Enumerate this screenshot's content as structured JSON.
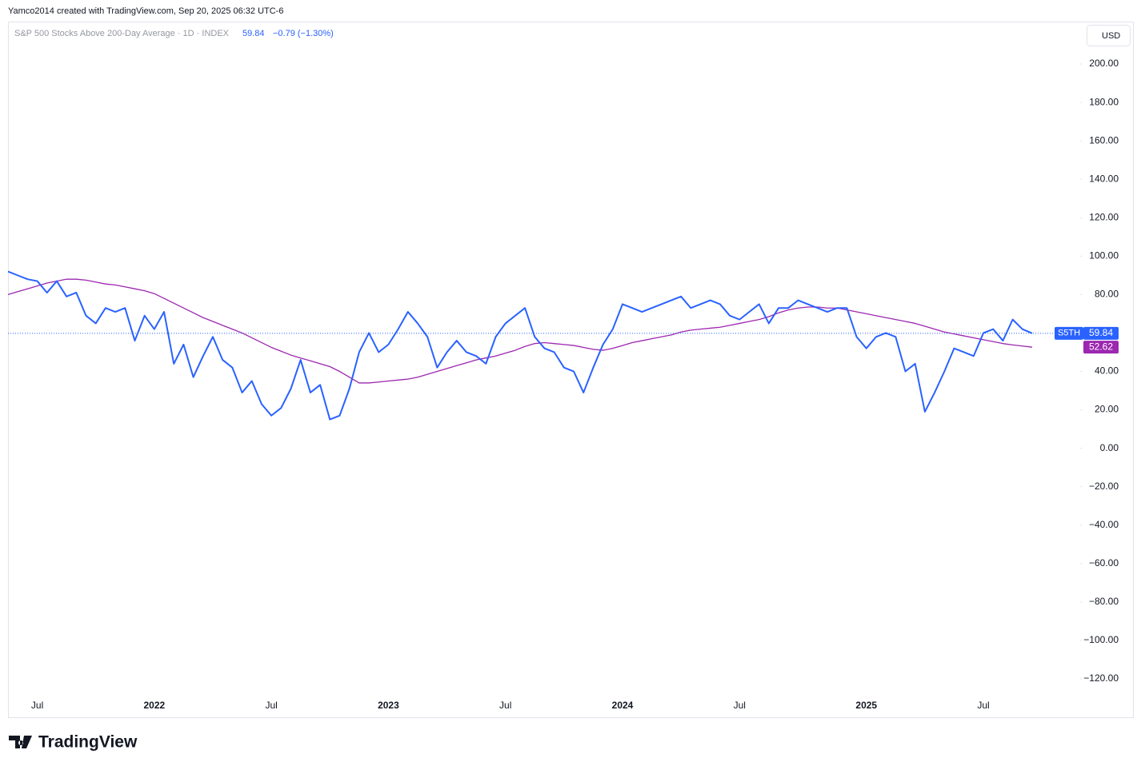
{
  "chart_data": {
    "type": "line",
    "attribution": "Yamco2014 created with TradingView.com, Sep 20, 2025 06:32 UTC-6",
    "title": "S&P 500 Stocks Above 200-Day Average · 1D · INDEX",
    "last_value": "59.84",
    "change": "−0.79 (−1.30%)",
    "currency": "USD",
    "brand": "TradingView",
    "categories": [
      null,
      null,
      null,
      "Jul",
      null,
      null,
      null,
      null,
      null,
      null,
      null,
      null,
      null,
      null,
      null,
      "2022",
      null,
      null,
      null,
      null,
      null,
      null,
      null,
      null,
      null,
      null,
      null,
      "Jul",
      null,
      null,
      null,
      null,
      null,
      null,
      null,
      null,
      null,
      null,
      null,
      "2023",
      null,
      null,
      null,
      null,
      null,
      null,
      null,
      null,
      null,
      null,
      null,
      "Jul",
      null,
      null,
      null,
      null,
      null,
      null,
      null,
      null,
      null,
      null,
      null,
      "2024",
      null,
      null,
      null,
      null,
      null,
      null,
      null,
      null,
      null,
      null,
      null,
      "Jul",
      null,
      null,
      null,
      null,
      null,
      null,
      null,
      null,
      null,
      null,
      null,
      null,
      "2025",
      null,
      null,
      null,
      null,
      null,
      null,
      null,
      null,
      null,
      null,
      null,
      "Jul",
      null,
      null,
      null,
      null,
      null
    ],
    "series": [
      {
        "name": "S5TH",
        "color": "#2962ff",
        "values": [
          92,
          90,
          88,
          87,
          81,
          87,
          79,
          81,
          69,
          65,
          73,
          71,
          73,
          56,
          69,
          62,
          71,
          44,
          54,
          37,
          48,
          58,
          46,
          42,
          29,
          35,
          23,
          17,
          21,
          31,
          46,
          29,
          33,
          15,
          17,
          31,
          50,
          60,
          50,
          54,
          62,
          71,
          65,
          58,
          42,
          50,
          56,
          50,
          48,
          44,
          58,
          65,
          69,
          73,
          58,
          52,
          50,
          42,
          40,
          29,
          42,
          54,
          62,
          75,
          73,
          71,
          73,
          75,
          77,
          79,
          73,
          75,
          77,
          75,
          69,
          67,
          71,
          75,
          65,
          73,
          73,
          77,
          75,
          73,
          71,
          73,
          73,
          58,
          52,
          58,
          60,
          58,
          40,
          44,
          19,
          29,
          40,
          52,
          50,
          48,
          60,
          62,
          56,
          67,
          62,
          59.84
        ]
      },
      {
        "color": "#9c27b0",
        "values": [
          80,
          81.5,
          83,
          84.5,
          86,
          87,
          88,
          88,
          87.5,
          86.5,
          85.5,
          85,
          84,
          83,
          82,
          80.5,
          78,
          75.5,
          73,
          70.5,
          68,
          66,
          64,
          62,
          60,
          57.5,
          55,
          52.5,
          50.5,
          48.5,
          47,
          45.5,
          44,
          42.5,
          40,
          37,
          34,
          34,
          34.5,
          35,
          35.5,
          36,
          37,
          38.5,
          40,
          41.5,
          43,
          44.5,
          46,
          47,
          48,
          49.5,
          51,
          53,
          54.5,
          55,
          54.5,
          54,
          53.5,
          52.5,
          51.5,
          51,
          52,
          53.5,
          55,
          56,
          57,
          58,
          59,
          60.5,
          61.5,
          62,
          62.5,
          63,
          64,
          65,
          66,
          67,
          68.5,
          70.5,
          72,
          73,
          73.5,
          73.5,
          73,
          73,
          72,
          71,
          70,
          69,
          68,
          67,
          66,
          65,
          63.5,
          62,
          60.5,
          59.5,
          58.5,
          57.5,
          56.5,
          55.5,
          54.5,
          53.8,
          53.2,
          52.62
        ]
      }
    ],
    "ylim": [
      -140,
      221.67
    ],
    "yticks": [
      {
        "value": 200,
        "label": "200.00"
      },
      {
        "value": 180,
        "label": "180.00"
      },
      {
        "value": 160,
        "label": "160.00"
      },
      {
        "value": 140,
        "label": "140.00"
      },
      {
        "value": 120,
        "label": "120.00"
      },
      {
        "value": 100,
        "label": "100.00"
      },
      {
        "value": 80,
        "label": "80.00"
      },
      {
        "value": 60,
        "label": "60.00"
      },
      {
        "value": 40,
        "label": "40.00"
      },
      {
        "value": 20,
        "label": "20.00"
      },
      {
        "value": 0,
        "label": "0.00"
      },
      {
        "value": -20,
        "label": "−20.00"
      },
      {
        "value": -40,
        "label": "−40.00"
      },
      {
        "value": -60,
        "label": "−60.00"
      },
      {
        "value": -80,
        "label": "−80.00"
      },
      {
        "value": -100,
        "label": "−100.00"
      },
      {
        "value": -120,
        "label": "−120.00"
      }
    ],
    "grid": false
  }
}
